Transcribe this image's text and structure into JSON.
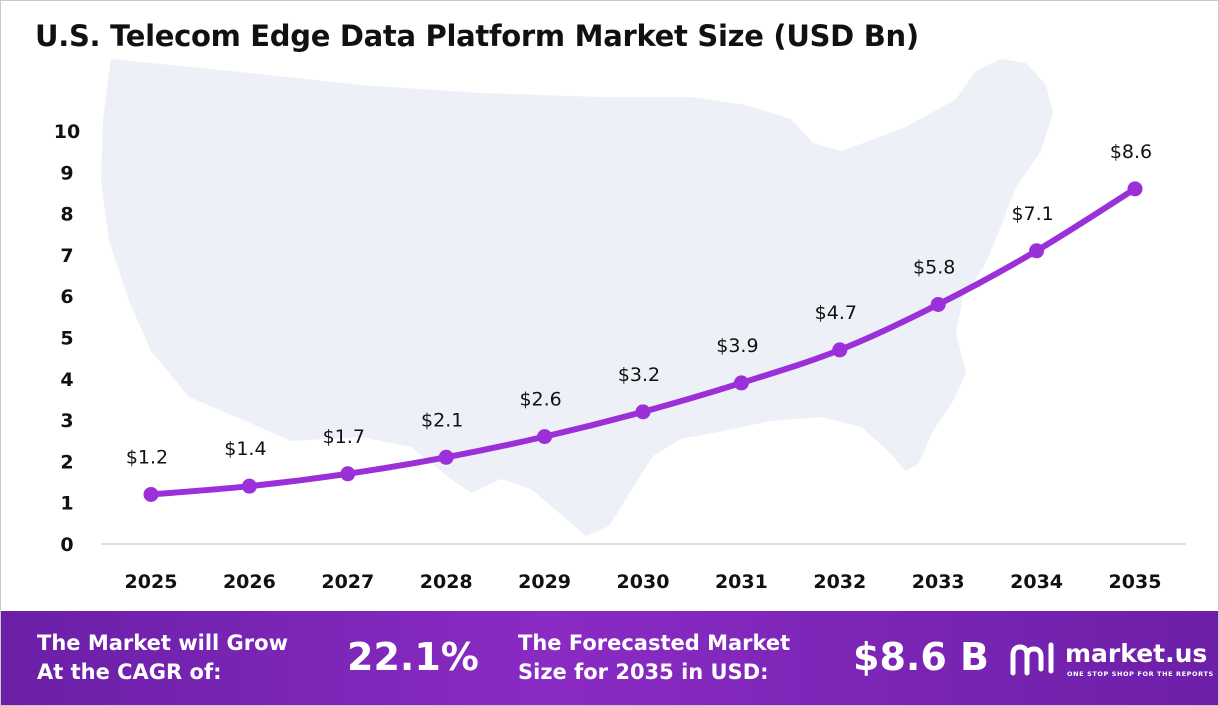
{
  "title": "U.S. Telecom Edge Data Platform Market Size (USD Bn)",
  "chart_data": {
    "type": "line",
    "title": "U.S. Telecom Edge Data Platform Market Size (USD Bn)",
    "x": [
      "2025",
      "2026",
      "2027",
      "2028",
      "2029",
      "2030",
      "2031",
      "2032",
      "2033",
      "2034",
      "2035"
    ],
    "values": [
      1.2,
      1.4,
      1.7,
      2.1,
      2.6,
      3.2,
      3.9,
      4.7,
      5.8,
      7.1,
      8.6
    ],
    "data_labels": [
      "$1.2",
      "$1.4",
      "$1.7",
      "$2.1",
      "$2.6",
      "$3.2",
      "$3.9",
      "$4.7",
      "$5.8",
      "$7.1",
      "$8.6"
    ],
    "yticks": [
      "0",
      "1",
      "2",
      "3",
      "4",
      "5",
      "6",
      "7",
      "8",
      "9",
      "10"
    ],
    "ylim": [
      0,
      10
    ],
    "xlabel": "",
    "ylabel": "",
    "grid": false,
    "legend": "none",
    "colors": {
      "line": "#9b30d9",
      "marker": "#9b30d9",
      "map": "#edf0f7"
    }
  },
  "footer": {
    "cagr_text_line1": "The Market will Grow",
    "cagr_text_line2": "At the CAGR of:",
    "cagr_value": "22.1%",
    "forecast_text_line1": "The Forecasted Market",
    "forecast_text_line2": "Size for 2035 in USD:",
    "forecast_value": "$8.6 B",
    "colors": {
      "start": "#6a1fa6",
      "mid": "#8a2bc4"
    }
  },
  "logo": {
    "name": "market.us",
    "tagline": "ONE STOP SHOP FOR THE REPORTS",
    "icon": "market-us-logo-icon"
  }
}
